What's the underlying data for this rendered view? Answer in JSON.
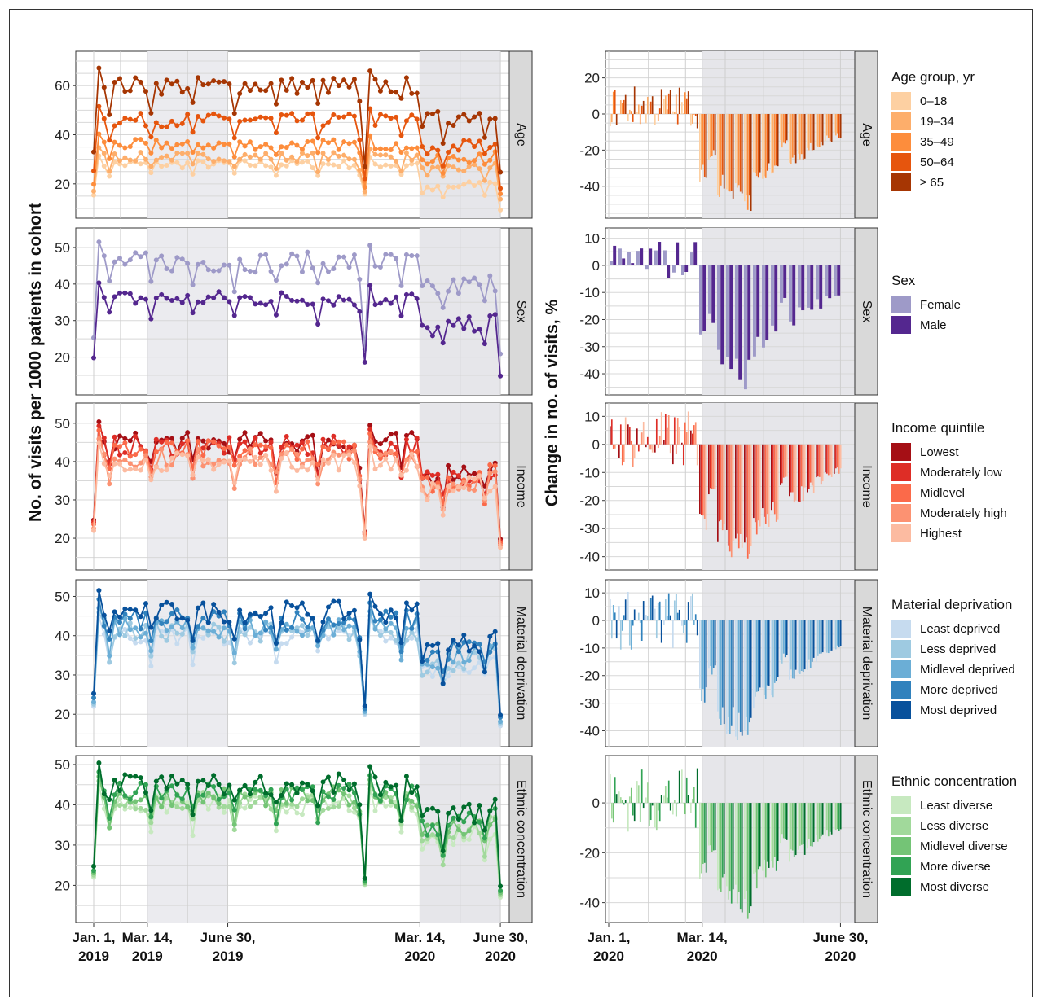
{
  "y_axis_left": "No. of visits per 1000 patients in cohort",
  "y_axis_right": "Change in no. of visits, %",
  "x_ticks_left": [
    {
      "line1": "Jan. 1,",
      "line2": "2019"
    },
    {
      "line1": "Mar. 14,",
      "line2": "2019"
    },
    {
      "line1": "June 30,",
      "line2": "2019"
    },
    {
      "line1": "Mar. 14,",
      "line2": "2020"
    },
    {
      "line1": "June 30,",
      "line2": "2020"
    }
  ],
  "x_ticks_right": [
    {
      "line1": "Jan. 1,",
      "line2": "2020"
    },
    {
      "line1": "Mar. 14,",
      "line2": "2020"
    },
    {
      "line1": "June 30,",
      "line2": "2020"
    }
  ],
  "chart_data": [
    {
      "type": "line",
      "panel": "Age",
      "x": [
        "2019-01-01",
        "2020-07-01"
      ],
      "ylim": [
        8,
        72
      ],
      "yticks": [
        20,
        40,
        60
      ],
      "shaded_periods": [
        [
          "2019-03-14",
          "2019-06-30"
        ],
        [
          "2020-03-14",
          "2020-06-30"
        ]
      ],
      "series": [
        {
          "name": "0–18",
          "color": "#fdd0a2",
          "approx_level": 28,
          "pandemic_level": 17
        },
        {
          "name": "19–34",
          "color": "#fdae6b",
          "approx_level": 31,
          "pandemic_level": 25
        },
        {
          "name": "35–49",
          "color": "#fd8d3c",
          "approx_level": 36,
          "pandemic_level": 29
        },
        {
          "name": "50–64",
          "color": "#e6550d",
          "approx_level": 46,
          "pandemic_level": 33
        },
        {
          "name": "≥ 65",
          "color": "#a63603",
          "approx_level": 60,
          "pandemic_level": 45
        }
      ]
    },
    {
      "type": "line",
      "panel": "Sex",
      "ylim": [
        11,
        54
      ],
      "yticks": [
        20,
        30,
        40,
        50
      ],
      "series": [
        {
          "name": "Female",
          "color": "#9e9ac8",
          "approx_level": 46,
          "pandemic_level": 38
        },
        {
          "name": "Male",
          "color": "#54278f",
          "approx_level": 36,
          "pandemic_level": 27
        }
      ]
    },
    {
      "type": "line",
      "panel": "Income",
      "ylim": [
        13,
        54
      ],
      "yticks": [
        20,
        30,
        40,
        50
      ],
      "series": [
        {
          "name": "Lowest",
          "color": "#a50f15",
          "approx_level": 45,
          "pandemic_level": 36
        },
        {
          "name": "Moderately low",
          "color": "#de2d26",
          "approx_level": 44,
          "pandemic_level": 35
        },
        {
          "name": "Midlevel",
          "color": "#fb6a4a",
          "approx_level": 43,
          "pandemic_level": 34
        },
        {
          "name": "Moderately high",
          "color": "#fc9272",
          "approx_level": 41,
          "pandemic_level": 33
        },
        {
          "name": "Highest",
          "color": "#fcbba1",
          "approx_level": 40,
          "pandemic_level": 32
        }
      ]
    },
    {
      "type": "line",
      "panel": "Material deprivation",
      "ylim": [
        13,
        53
      ],
      "yticks": [
        20,
        30,
        40,
        50
      ],
      "series": [
        {
          "name": "Least deprived",
          "color": "#c6dbef",
          "approx_level": 40,
          "pandemic_level": 31
        },
        {
          "name": "Less deprived",
          "color": "#9ecae1",
          "approx_level": 41,
          "pandemic_level": 32
        },
        {
          "name": "Midlevel deprived",
          "color": "#6baed6",
          "approx_level": 42,
          "pandemic_level": 33
        },
        {
          "name": "More deprived",
          "color": "#3182bd",
          "approx_level": 44,
          "pandemic_level": 35
        },
        {
          "name": "Most deprived",
          "color": "#08519c",
          "approx_level": 46,
          "pandemic_level": 36
        }
      ]
    },
    {
      "type": "line",
      "panel": "Ethnic concentration",
      "ylim": [
        12,
        51
      ],
      "yticks": [
        20,
        30,
        40,
        50
      ],
      "series": [
        {
          "name": "Least diverse",
          "color": "#c7e9c0",
          "approx_level": 40,
          "pandemic_level": 31
        },
        {
          "name": "Less diverse",
          "color": "#a1d99b",
          "approx_level": 41,
          "pandemic_level": 32
        },
        {
          "name": "Midlevel diverse",
          "color": "#74c476",
          "approx_level": 42,
          "pandemic_level": 33
        },
        {
          "name": "More diverse",
          "color": "#31a354",
          "approx_level": 43,
          "pandemic_level": 34
        },
        {
          "name": "Most diverse",
          "color": "#006d2c",
          "approx_level": 45,
          "pandemic_level": 36
        }
      ]
    },
    {
      "type": "bar",
      "panel": "Age",
      "x": [
        "2020-01-01",
        "2020-07-01"
      ],
      "ylim": [
        -55,
        32
      ],
      "yticks": [
        -40,
        -20,
        0,
        20
      ],
      "pre_pandemic_range": [
        -8,
        16
      ],
      "pandemic_min": -52
    },
    {
      "type": "bar",
      "panel": "Sex",
      "ylim": [
        -46,
        12
      ],
      "yticks": [
        -40,
        -30,
        -20,
        -10,
        0,
        10
      ],
      "pre_pandemic_range": [
        -6,
        10
      ],
      "pandemic_min": -44
    },
    {
      "type": "bar",
      "panel": "Income",
      "ylim": [
        -43,
        13
      ],
      "yticks": [
        -40,
        -30,
        -20,
        -10,
        0,
        10
      ],
      "pre_pandemic_range": [
        -9,
        12
      ],
      "pandemic_min": -42
    },
    {
      "type": "bar",
      "panel": "Material deprivation",
      "ylim": [
        -44,
        13
      ],
      "yticks": [
        -40,
        -30,
        -20,
        -10,
        0,
        10
      ],
      "pre_pandemic_range": [
        -11,
        11
      ],
      "pandemic_min": -43
    },
    {
      "type": "bar",
      "panel": "Ethnic concentration",
      "ylim": [
        -46,
        17
      ],
      "yticks": [
        -40,
        -20,
        0
      ],
      "pre_pandemic_range": [
        -12,
        14
      ],
      "pandemic_min": -44
    }
  ],
  "legends": [
    {
      "title": "Age group, yr",
      "items": [
        {
          "label": "0–18",
          "color": "#fdd0a2"
        },
        {
          "label": "19–34",
          "color": "#fdae6b"
        },
        {
          "label": "35–49",
          "color": "#fd8d3c"
        },
        {
          "label": "50–64",
          "color": "#e6550d"
        },
        {
          "label": "≥ 65",
          "color": "#a63603"
        }
      ]
    },
    {
      "title": "Sex",
      "items": [
        {
          "label": "Female",
          "color": "#9e9ac8"
        },
        {
          "label": "Male",
          "color": "#54278f"
        }
      ]
    },
    {
      "title": "Income quintile",
      "items": [
        {
          "label": "Lowest",
          "color": "#a50f15"
        },
        {
          "label": "Moderately low",
          "color": "#de2d26"
        },
        {
          "label": "Midlevel",
          "color": "#fb6a4a"
        },
        {
          "label": "Moderately high",
          "color": "#fc9272"
        },
        {
          "label": "Highest",
          "color": "#fcbba1"
        }
      ]
    },
    {
      "title": "Material deprivation",
      "items": [
        {
          "label": "Least deprived",
          "color": "#c6dbef"
        },
        {
          "label": "Less deprived",
          "color": "#9ecae1"
        },
        {
          "label": "Midlevel deprived",
          "color": "#6baed6"
        },
        {
          "label": "More deprived",
          "color": "#3182bd"
        },
        {
          "label": "Most deprived",
          "color": "#08519c"
        }
      ]
    },
    {
      "title": "Ethnic concentration",
      "items": [
        {
          "label": "Least diverse",
          "color": "#c7e9c0"
        },
        {
          "label": "Less diverse",
          "color": "#a1d99b"
        },
        {
          "label": "Midlevel diverse",
          "color": "#74c476"
        },
        {
          "label": "More diverse",
          "color": "#31a354"
        },
        {
          "label": "Most diverse",
          "color": "#006d2c"
        }
      ]
    }
  ]
}
